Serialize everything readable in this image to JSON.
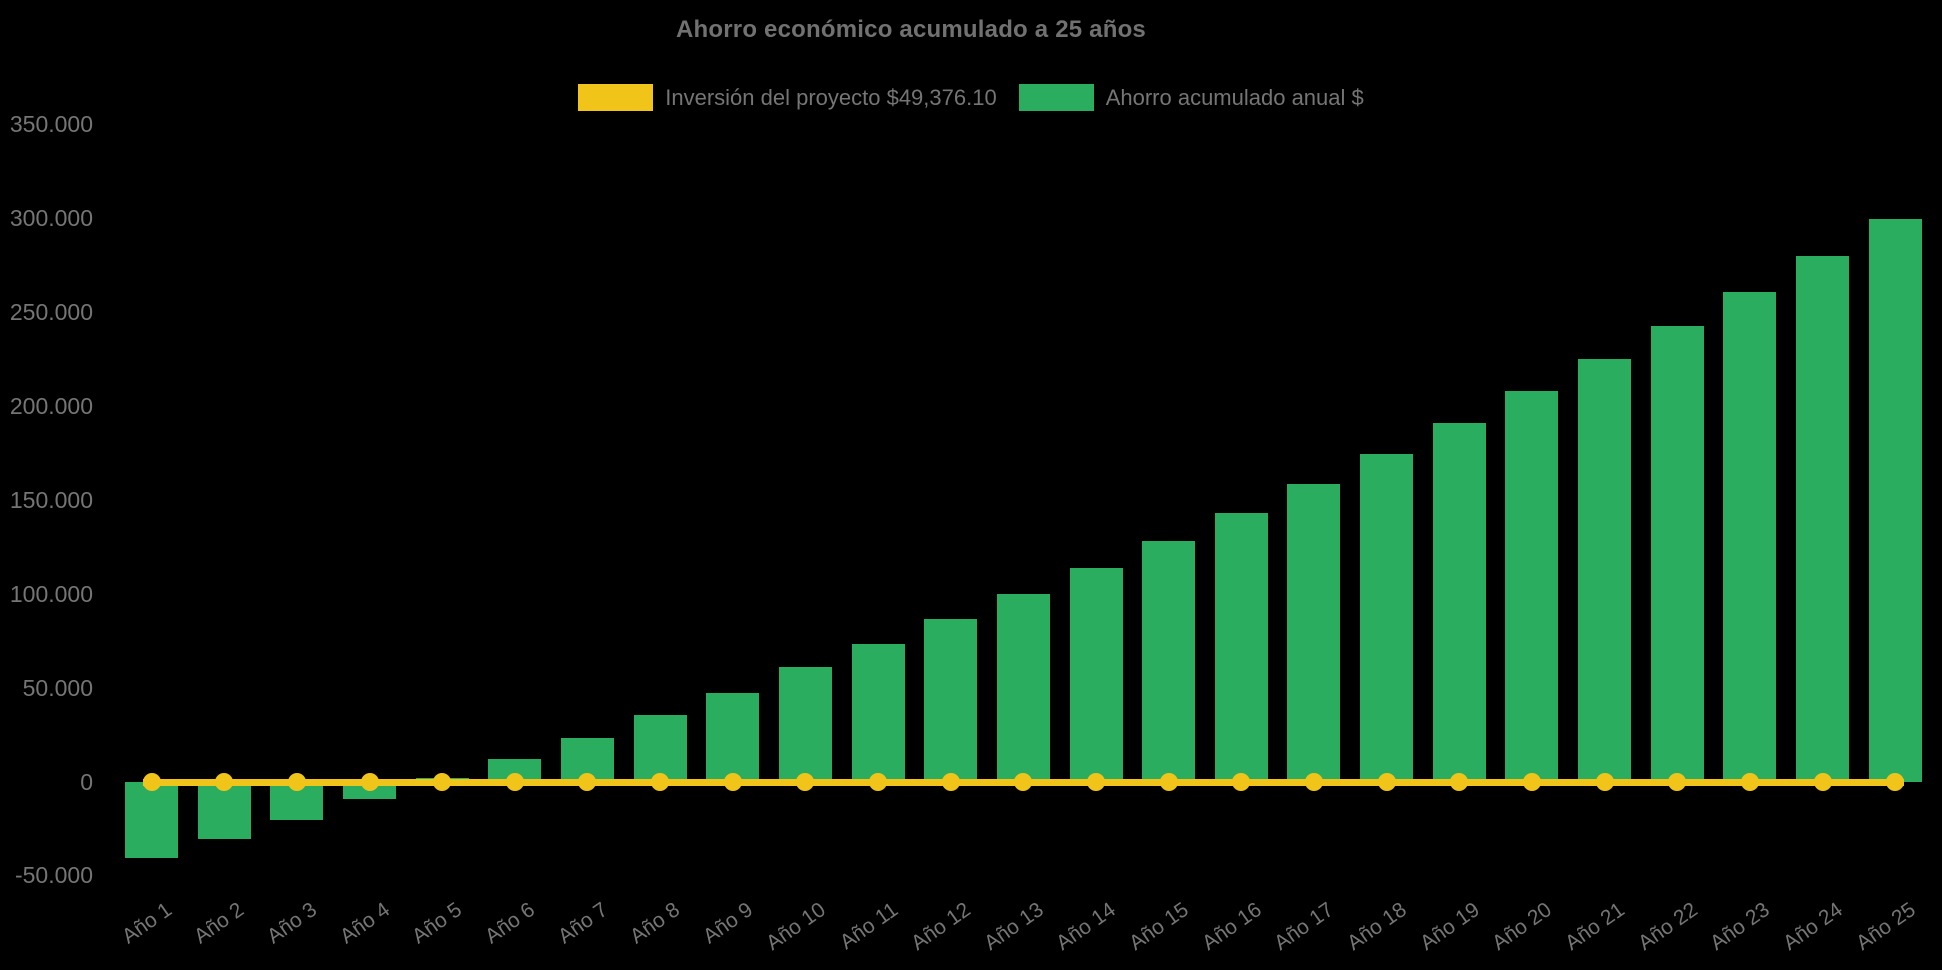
{
  "title": "Ahorro económico acumulado a 25 años",
  "colors": {
    "background": "#000000",
    "bar_green": "#2BAD60",
    "line_yellow": "#F0C419",
    "text_gray": "#757575",
    "title_gray": "#717171"
  },
  "legend": {
    "items": [
      {
        "label": "Inversión del proyecto $49,376.10",
        "color": "#F0C419",
        "series": "investment-line"
      },
      {
        "label": "Ahorro acumulado anual $",
        "color": "#2BAD60",
        "series": "savings-bars"
      }
    ]
  },
  "chart_data": {
    "type": "bar",
    "title": "Ahorro económico acumulado a 25 años",
    "categories": [
      "Año 1",
      "Año 2",
      "Año 3",
      "Año 4",
      "Año 5",
      "Año 6",
      "Año 7",
      "Año 8",
      "Año 9",
      "Año 10",
      "Año 11",
      "Año 12",
      "Año 13",
      "Año 14",
      "Año 15",
      "Año 16",
      "Año 17",
      "Año 18",
      "Año 19",
      "Año 20",
      "Año 21",
      "Año 22",
      "Año 23",
      "Año 24",
      "Año 25"
    ],
    "series": [
      {
        "name": "Inversión del proyecto $49,376.10",
        "type": "line",
        "color": "#F0C419",
        "values": [
          0,
          0,
          0,
          0,
          0,
          0,
          0,
          0,
          0,
          0,
          0,
          0,
          0,
          0,
          0,
          0,
          0,
          0,
          0,
          0,
          0,
          0,
          0,
          0,
          0
        ]
      },
      {
        "name": "Ahorro acumulado anual $",
        "type": "bar",
        "color": "#2BAD60",
        "values": [
          -40500,
          -30500,
          -20000,
          -9000,
          2000,
          12500,
          23500,
          35500,
          47500,
          61000,
          73500,
          87000,
          100000,
          114000,
          128500,
          143500,
          158500,
          174500,
          191000,
          208000,
          225000,
          243000,
          261000,
          280000,
          300000
        ]
      }
    ],
    "xlabel": "",
    "ylabel": "",
    "ylim": [
      -50000,
      350000
    ],
    "ytick_interval": 50000,
    "ytick_labels": [
      "350.000",
      "300.000",
      "250.000",
      "200.000",
      "150.000",
      "100.000",
      "50.000",
      "0",
      "-50.000"
    ],
    "grid": false,
    "legend_position": "top",
    "x_tick_rotation_deg": -35
  }
}
